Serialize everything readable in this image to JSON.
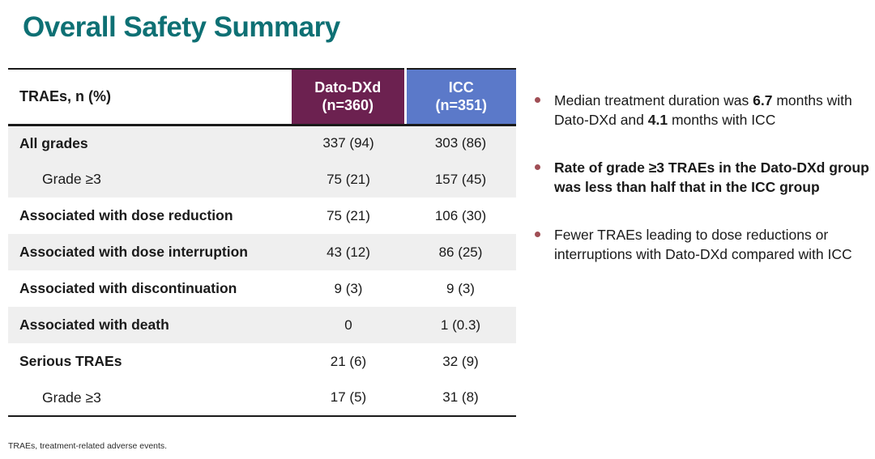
{
  "title": "Overall Safety Summary",
  "table": {
    "header": {
      "row_label": "TRAEs, n (%)",
      "col_dato_name": "Dato-DXd",
      "col_dato_n": "(n=360)",
      "col_icc_name": "ICC",
      "col_icc_n": "(n=351)"
    },
    "rows": [
      {
        "label": "All grades",
        "indent": false,
        "dato": "337 (94)",
        "icc": "303 (86)",
        "shade": true
      },
      {
        "label": "Grade ≥3",
        "indent": true,
        "dato": "75 (21)",
        "icc": "157 (45)",
        "shade": true
      },
      {
        "label": "Associated with dose reduction",
        "indent": false,
        "dato": "75 (21)",
        "icc": "106 (30)",
        "shade": false
      },
      {
        "label": "Associated with dose interruption",
        "indent": false,
        "dato": "43 (12)",
        "icc": "86 (25)",
        "shade": true
      },
      {
        "label": "Associated with discontinuation",
        "indent": false,
        "dato": "9 (3)",
        "icc": "9 (3)",
        "shade": false
      },
      {
        "label": "Associated with death",
        "indent": false,
        "dato": "0",
        "icc": "1 (0.3)",
        "shade": true
      },
      {
        "label": "Serious TRAEs",
        "indent": false,
        "dato": "21 (6)",
        "icc": "32 (9)",
        "shade": false
      },
      {
        "label": "Grade ≥3",
        "indent": true,
        "dato": "17 (5)",
        "icc": "31 (8)",
        "shade": false
      }
    ]
  },
  "bullets": [
    {
      "all_bold": false,
      "segments": [
        {
          "text": "Median treatment duration was ",
          "bold": false
        },
        {
          "text": "6.7",
          "bold": true
        },
        {
          "text": " months with Dato-DXd and ",
          "bold": false
        },
        {
          "text": "4.1",
          "bold": true
        },
        {
          "text": " months with ICC",
          "bold": false
        }
      ]
    },
    {
      "all_bold": true,
      "segments": [
        {
          "text": "Rate of grade ≥3 TRAEs in the Dato-DXd group was less than half that in the ICC group",
          "bold": true
        }
      ]
    },
    {
      "all_bold": false,
      "segments": [
        {
          "text": "Fewer TRAEs leading to dose reductions or interruptions with Dato-DXd compared with ICC",
          "bold": false
        }
      ]
    }
  ],
  "footnote": "TRAEs, treatment-related adverse events.",
  "colors": {
    "title_teal": "#0E7074",
    "header_maroon": "#6C2150",
    "header_blue": "#5B79C9",
    "row_shade": "#EFEFEF",
    "bullet_dot": "#A04E55",
    "text_dark": "#1A1A1A"
  }
}
